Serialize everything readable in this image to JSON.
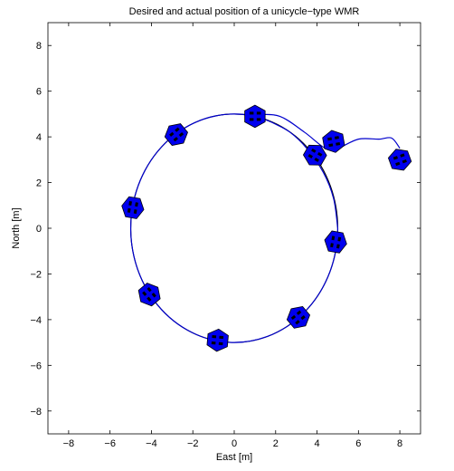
{
  "chart_data": {
    "type": "line",
    "title": "Desired and actual position of a unicycle−type WMR",
    "xlabel": "East [m]",
    "ylabel": "North [m]",
    "xlim": [
      -9,
      9
    ],
    "ylim": [
      -9,
      9
    ],
    "xticks": [
      -8,
      -6,
      -4,
      -2,
      0,
      2,
      4,
      6,
      8
    ],
    "yticks": [
      -8,
      -6,
      -4,
      -2,
      0,
      2,
      4,
      6,
      8
    ],
    "xtick_labels": [
      "−8",
      "−6",
      "−4",
      "−2",
      "0",
      "2",
      "4",
      "6",
      "8"
    ],
    "ytick_labels": [
      "−8",
      "−6",
      "−4",
      "−2",
      "0",
      "2",
      "4",
      "6",
      "8"
    ],
    "grid": false,
    "series": [
      {
        "color": "#000000",
        "shape": "circle",
        "center": [
          0,
          0
        ],
        "radius": 5
      },
      {
        "color": "#0000cc",
        "x": [
          8.0,
          7.6,
          7.0,
          6.0,
          5.0,
          4.4,
          3.4,
          2.2,
          1.1,
          1.9,
          2.7,
          3.5,
          4.3,
          4.8,
          5.0
        ],
        "y": [
          3.5,
          3.95,
          3.9,
          3.9,
          3.5,
          3.5,
          4.2,
          4.9,
          4.93,
          4.6,
          4.2,
          3.5,
          2.45,
          1.3,
          0.0
        ]
      }
    ],
    "vehicles": [
      {
        "x": 8.0,
        "y": 3.0,
        "heading": 20
      },
      {
        "x": 4.8,
        "y": 3.8,
        "heading": 10
      },
      {
        "x": 3.9,
        "y": 3.2,
        "heading": -30
      },
      {
        "x": 1.0,
        "y": 4.9,
        "heading": 0
      },
      {
        "x": -2.8,
        "y": 4.1,
        "heading": 40
      },
      {
        "x": -4.9,
        "y": 0.9,
        "heading": 80
      },
      {
        "x": -4.1,
        "y": -2.9,
        "heading": 130
      },
      {
        "x": -0.8,
        "y": -4.9,
        "heading": 175
      },
      {
        "x": 3.1,
        "y": -3.9,
        "heading": 220
      },
      {
        "x": 4.9,
        "y": -0.6,
        "heading": 260
      }
    ],
    "colors": {
      "vehicle_fill": "#0000ee",
      "vehicle_outline": "#000000",
      "wheel": "#000000"
    }
  }
}
